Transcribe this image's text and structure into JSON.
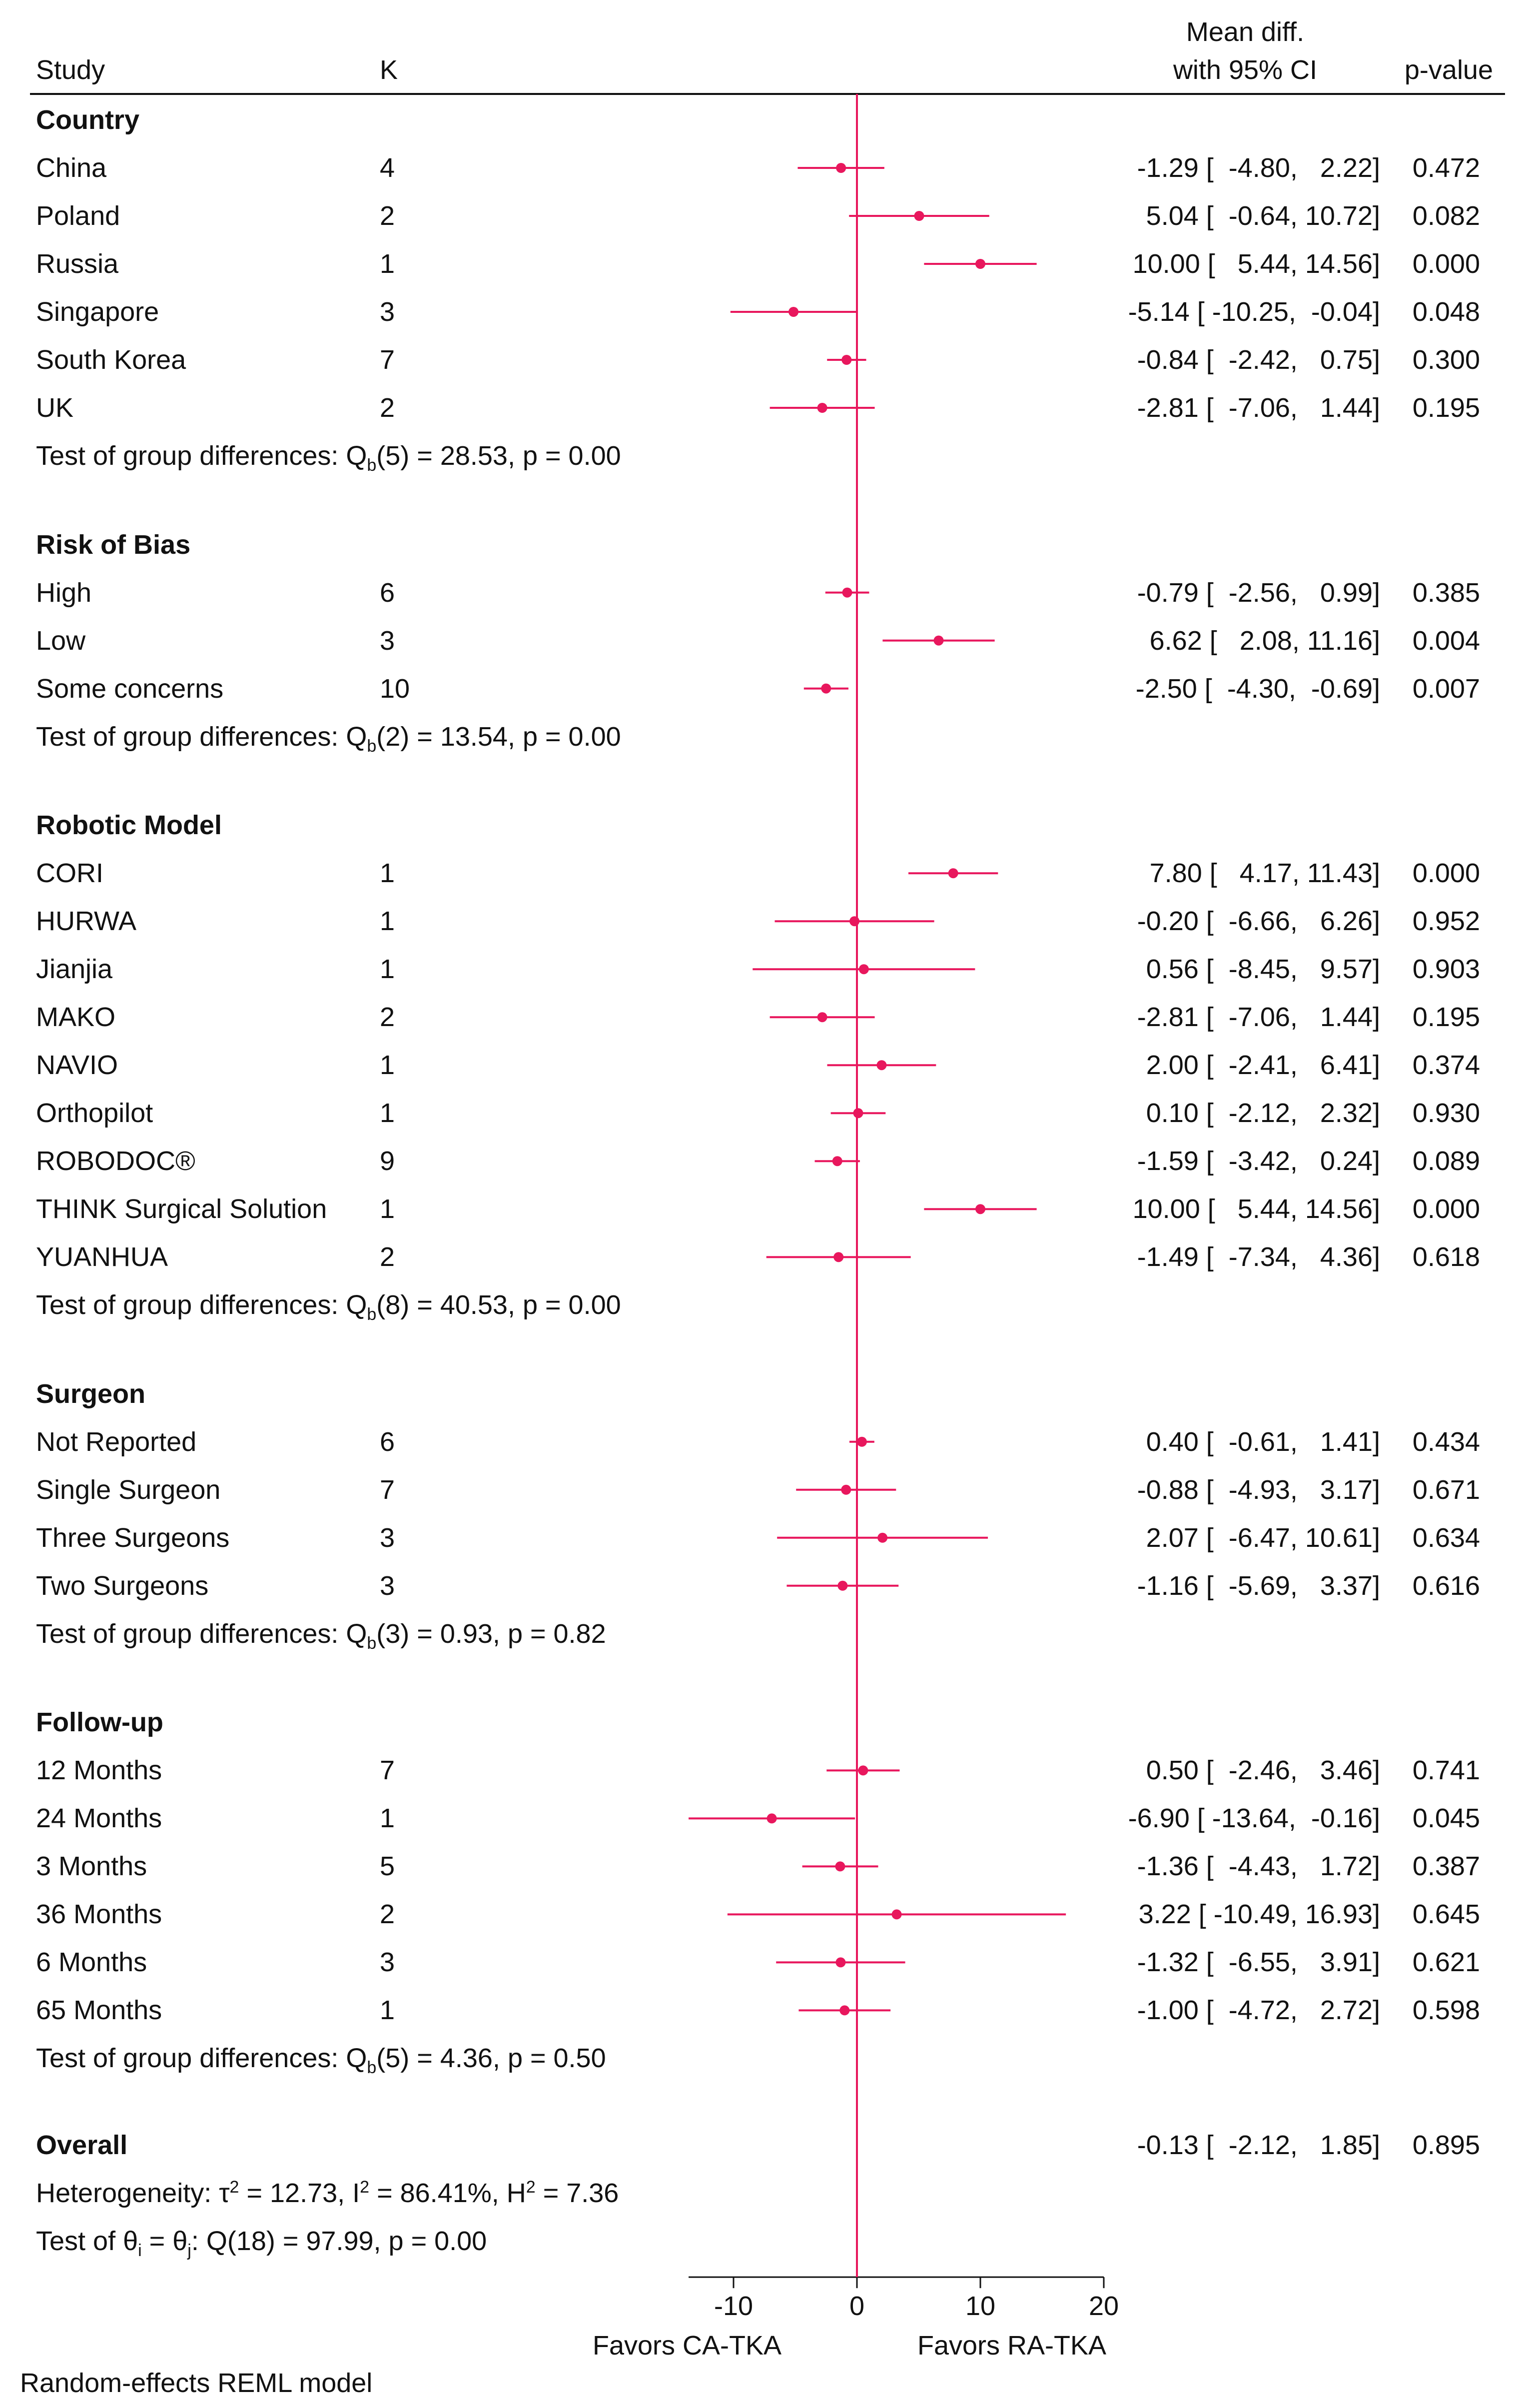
{
  "chart_data": {
    "type": "forest",
    "headers": {
      "study": "Study",
      "k": "K",
      "effect_line1": "Mean diff.",
      "effect_line2": "with 95% CI",
      "pvalue": "p-value"
    },
    "groups": [
      {
        "title": "Country",
        "rows": [
          {
            "label": "China",
            "k": "4",
            "mean": -1.29,
            "lo": -4.8,
            "hi": 2.22,
            "ci_text": "-1.29 [  -4.80,   2.22]",
            "p": "0.472"
          },
          {
            "label": "Poland",
            "k": "2",
            "mean": 5.04,
            "lo": -0.64,
            "hi": 10.72,
            "ci_text": "5.04 [  -0.64, 10.72]",
            "p": "0.082"
          },
          {
            "label": "Russia",
            "k": "1",
            "mean": 10.0,
            "lo": 5.44,
            "hi": 14.56,
            "ci_text": "10.00 [   5.44, 14.56]",
            "p": "0.000"
          },
          {
            "label": "Singapore",
            "k": "3",
            "mean": -5.14,
            "lo": -10.25,
            "hi": -0.04,
            "ci_text": "-5.14 [ -10.25,  -0.04]",
            "p": "0.048"
          },
          {
            "label": "South Korea",
            "k": "7",
            "mean": -0.84,
            "lo": -2.42,
            "hi": 0.75,
            "ci_text": "-0.84 [  -2.42,   0.75]",
            "p": "0.300"
          },
          {
            "label": "UK",
            "k": "2",
            "mean": -2.81,
            "lo": -7.06,
            "hi": 1.44,
            "ci_text": "-2.81 [  -7.06,   1.44]",
            "p": "0.195"
          }
        ],
        "test": {
          "prefix": "Test of group differences: Q",
          "sub": "b",
          "suffix": "(5) = 28.53, p = 0.00"
        }
      },
      {
        "title": "Risk of Bias",
        "rows": [
          {
            "label": "High",
            "k": "6",
            "mean": -0.79,
            "lo": -2.56,
            "hi": 0.99,
            "ci_text": "-0.79 [  -2.56,   0.99]",
            "p": "0.385"
          },
          {
            "label": "Low",
            "k": "3",
            "mean": 6.62,
            "lo": 2.08,
            "hi": 11.16,
            "ci_text": "6.62 [   2.08, 11.16]",
            "p": "0.004"
          },
          {
            "label": "Some concerns",
            "k": "10",
            "mean": -2.5,
            "lo": -4.3,
            "hi": -0.69,
            "ci_text": "-2.50 [  -4.30,  -0.69]",
            "p": "0.007"
          }
        ],
        "test": {
          "prefix": "Test of group differences: Q",
          "sub": "b",
          "suffix": "(2) = 13.54, p = 0.00"
        }
      },
      {
        "title": "Robotic Model",
        "rows": [
          {
            "label": "CORI",
            "k": "1",
            "mean": 7.8,
            "lo": 4.17,
            "hi": 11.43,
            "ci_text": "7.80 [   4.17, 11.43]",
            "p": "0.000"
          },
          {
            "label": "HURWA",
            "k": "1",
            "mean": -0.2,
            "lo": -6.66,
            "hi": 6.26,
            "ci_text": "-0.20 [  -6.66,   6.26]",
            "p": "0.952"
          },
          {
            "label": "Jianjia",
            "k": "1",
            "mean": 0.56,
            "lo": -8.45,
            "hi": 9.57,
            "ci_text": "0.56 [  -8.45,   9.57]",
            "p": "0.903"
          },
          {
            "label": "MAKO",
            "k": "2",
            "mean": -2.81,
            "lo": -7.06,
            "hi": 1.44,
            "ci_text": "-2.81 [  -7.06,   1.44]",
            "p": "0.195"
          },
          {
            "label": "NAVIO",
            "k": "1",
            "mean": 2.0,
            "lo": -2.41,
            "hi": 6.41,
            "ci_text": "2.00 [  -2.41,   6.41]",
            "p": "0.374"
          },
          {
            "label": "Orthopilot",
            "k": "1",
            "mean": 0.1,
            "lo": -2.12,
            "hi": 2.32,
            "ci_text": "0.10 [  -2.12,   2.32]",
            "p": "0.930"
          },
          {
            "label": "ROBODOC®",
            "k": "9",
            "mean": -1.59,
            "lo": -3.42,
            "hi": 0.24,
            "ci_text": "-1.59 [  -3.42,   0.24]",
            "p": "0.089"
          },
          {
            "label": "THINK Surgical Solution",
            "k": "1",
            "mean": 10.0,
            "lo": 5.44,
            "hi": 14.56,
            "ci_text": "10.00 [   5.44, 14.56]",
            "p": "0.000"
          },
          {
            "label": "YUANHUA",
            "k": "2",
            "mean": -1.49,
            "lo": -7.34,
            "hi": 4.36,
            "ci_text": "-1.49 [  -7.34,   4.36]",
            "p": "0.618"
          }
        ],
        "test": {
          "prefix": "Test of group differences: Q",
          "sub": "b",
          "suffix": "(8) = 40.53, p = 0.00"
        }
      },
      {
        "title": "Surgeon",
        "rows": [
          {
            "label": "Not Reported",
            "k": "6",
            "mean": 0.4,
            "lo": -0.61,
            "hi": 1.41,
            "ci_text": "0.40 [  -0.61,   1.41]",
            "p": "0.434"
          },
          {
            "label": "Single Surgeon",
            "k": "7",
            "mean": -0.88,
            "lo": -4.93,
            "hi": 3.17,
            "ci_text": "-0.88 [  -4.93,   3.17]",
            "p": "0.671"
          },
          {
            "label": "Three Surgeons",
            "k": "3",
            "mean": 2.07,
            "lo": -6.47,
            "hi": 10.61,
            "ci_text": "2.07 [  -6.47, 10.61]",
            "p": "0.634"
          },
          {
            "label": "Two Surgeons",
            "k": "3",
            "mean": -1.16,
            "lo": -5.69,
            "hi": 3.37,
            "ci_text": "-1.16 [  -5.69,   3.37]",
            "p": "0.616"
          }
        ],
        "test": {
          "prefix": "Test of group differences: Q",
          "sub": "b",
          "suffix": "(3) = 0.93, p = 0.82"
        }
      },
      {
        "title": "Follow-up",
        "rows": [
          {
            "label": "12 Months",
            "k": "7",
            "mean": 0.5,
            "lo": -2.46,
            "hi": 3.46,
            "ci_text": "0.50 [  -2.46,   3.46]",
            "p": "0.741"
          },
          {
            "label": "24 Months",
            "k": "1",
            "mean": -6.9,
            "lo": -13.64,
            "hi": -0.16,
            "ci_text": "-6.90 [ -13.64,  -0.16]",
            "p": "0.045"
          },
          {
            "label": "3 Months",
            "k": "5",
            "mean": -1.36,
            "lo": -4.43,
            "hi": 1.72,
            "ci_text": "-1.36 [  -4.43,   1.72]",
            "p": "0.387"
          },
          {
            "label": "36 Months",
            "k": "2",
            "mean": 3.22,
            "lo": -10.49,
            "hi": 16.93,
            "ci_text": "3.22 [ -10.49, 16.93]",
            "p": "0.645"
          },
          {
            "label": "6 Months",
            "k": "3",
            "mean": -1.32,
            "lo": -6.55,
            "hi": 3.91,
            "ci_text": "-1.32 [  -6.55,   3.91]",
            "p": "0.621"
          },
          {
            "label": "65 Months",
            "k": "1",
            "mean": -1.0,
            "lo": -4.72,
            "hi": 2.72,
            "ci_text": "-1.00 [  -4.72,   2.72]",
            "p": "0.598"
          }
        ],
        "test": {
          "prefix": "Test of group differences: Q",
          "sub": "b",
          "suffix": "(5) = 4.36, p = 0.50"
        }
      }
    ],
    "overall": {
      "title": "Overall",
      "mean": -0.13,
      "lo": -2.12,
      "hi": 1.85,
      "ci_text": "-0.13 [  -2.12,   1.85]",
      "p": "0.895",
      "heterogeneity": {
        "a": "Heterogeneity: τ",
        "sup1": "2",
        "b": " = 12.73, I",
        "sup2": "2",
        "c": " = 86.41%, H",
        "sup3": "2",
        "d": " = 7.36"
      },
      "test": {
        "a": "Test of θ",
        "sub1": "i",
        "b": " = θ",
        "sub2": "j",
        "c": ": Q(18) = 97.99, p = 0.00"
      }
    },
    "x_axis": {
      "range": [
        -13.64,
        20
      ],
      "ticks": [
        -10,
        0,
        10,
        20
      ],
      "reference_line": 0
    },
    "favors_left": "Favors CA-TKA",
    "favors_right": "Favors RA-TKA",
    "model_note": "Random-effects REML model",
    "colors": {
      "marker": "#E8175D",
      "line": "#E8175D",
      "text": "#111111",
      "axis": "#111111"
    }
  }
}
